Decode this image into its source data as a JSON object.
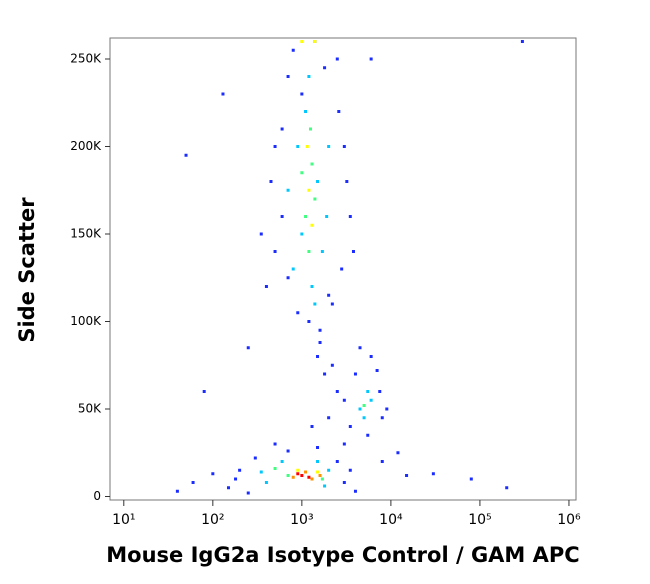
{
  "chart_data": {
    "type": "scatter",
    "xscale": "log",
    "x_label": "Mouse IgG2a Isotype Control / GAM APC",
    "y_label": "Side Scatter",
    "xlim": [
      7,
      1200000
    ],
    "ylim": [
      -2000,
      262000
    ],
    "xticks": [
      {
        "value": 10,
        "label": "10¹"
      },
      {
        "value": 100,
        "label": "10²"
      },
      {
        "value": 1000,
        "label": "10³"
      },
      {
        "value": 10000,
        "label": "10⁴"
      },
      {
        "value": 100000,
        "label": "10⁵"
      },
      {
        "value": 1000000,
        "label": "10⁶"
      }
    ],
    "yticks": [
      0,
      {
        "value": 50000,
        "label": "50K"
      },
      {
        "value": 100000,
        "label": "100K"
      },
      {
        "value": 150000,
        "label": "150K"
      },
      {
        "value": 200000,
        "label": "200K"
      },
      {
        "value": 250000,
        "label": "250K"
      }
    ],
    "series": [
      {
        "color": "#1a2cff",
        "x": [
          400,
          500,
          450,
          600,
          700,
          800,
          2500,
          3000,
          3500,
          2800,
          2200,
          900,
          1200,
          1600,
          1000,
          1800,
          600,
          3200,
          500,
          700,
          2600,
          1400,
          2000,
          3800,
          350,
          1500,
          1800,
          2500,
          2000,
          1300,
          3000,
          1600,
          2200,
          3500,
          4000,
          6000,
          7500,
          8000,
          3000,
          5500,
          7000,
          4500,
          9000,
          150,
          200,
          250,
          300,
          2500,
          3000,
          4000,
          500,
          1500,
          700,
          180,
          3500,
          50,
          60,
          40,
          80,
          100,
          30000,
          80000,
          200000,
          15000,
          300000,
          8000,
          12000,
          130,
          6000,
          250
        ],
        "y": [
          120000,
          140000,
          180000,
          210000,
          240000,
          255000,
          250000,
          200000,
          160000,
          130000,
          110000,
          105000,
          100000,
          95000,
          230000,
          245000,
          160000,
          180000,
          200000,
          125000,
          220000,
          260000,
          115000,
          140000,
          150000,
          80000,
          70000,
          60000,
          45000,
          40000,
          30000,
          88000,
          75000,
          40000,
          70000,
          80000,
          60000,
          45000,
          55000,
          35000,
          72000,
          85000,
          50000,
          5000,
          15000,
          2000,
          22000,
          20000,
          8000,
          3000,
          30000,
          28000,
          26000,
          10000,
          15000,
          195000,
          8000,
          3000,
          60000,
          13000,
          13000,
          10000,
          5000,
          12000,
          260000,
          20000,
          25000,
          230000,
          250000,
          85000
        ]
      },
      {
        "color": "#00c8ff",
        "x": [
          800,
          1000,
          900,
          1100,
          1500,
          1700,
          1300,
          1900,
          1200,
          700,
          2000,
          1400,
          4500,
          5500,
          5000,
          6000,
          400,
          2000,
          600,
          1800,
          350,
          1500
        ],
        "y": [
          130000,
          150000,
          200000,
          220000,
          180000,
          140000,
          120000,
          160000,
          240000,
          175000,
          200000,
          110000,
          50000,
          60000,
          45000,
          55000,
          8000,
          15000,
          20000,
          6000,
          14000,
          20000
        ]
      },
      {
        "color": "#40ff80",
        "x": [
          1100,
          1300,
          1200,
          1400,
          1000,
          1250,
          5000,
          700,
          1700,
          500
        ],
        "y": [
          160000,
          190000,
          140000,
          170000,
          185000,
          210000,
          52000,
          12000,
          10000,
          16000
        ]
      },
      {
        "color": "#ffff00",
        "x": [
          1200,
          1300,
          1150,
          900,
          1500,
          1400,
          1000
        ],
        "y": [
          175000,
          155000,
          200000,
          15000,
          14000,
          260000,
          260000
        ]
      },
      {
        "color": "#ff9000",
        "x": [
          800,
          1300,
          1100,
          1600
        ],
        "y": [
          11000,
          10000,
          14000,
          12000
        ]
      },
      {
        "color": "#ff0000",
        "x": [
          1000,
          1200,
          900
        ],
        "y": [
          12000,
          11000,
          13000
        ]
      }
    ]
  }
}
